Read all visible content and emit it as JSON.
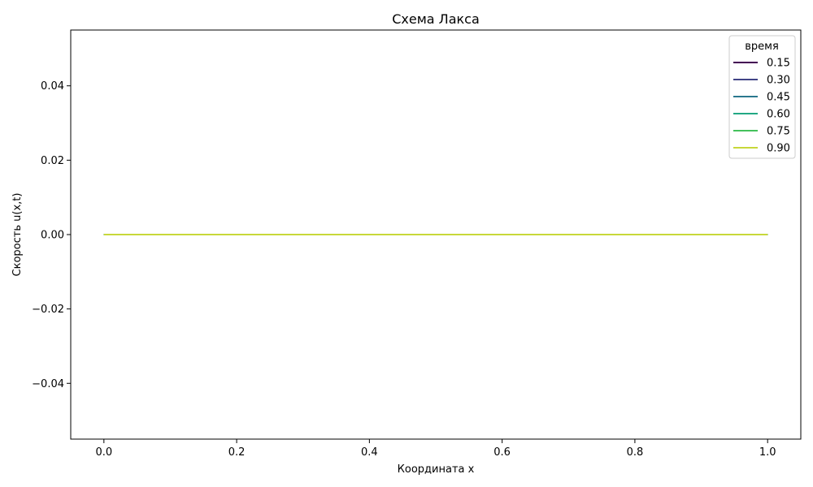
{
  "chart_data": {
    "type": "line",
    "title": "Схема Лакса",
    "xlabel": "Координата x",
    "ylabel": "Скорость u(x,t)",
    "xlim": [
      -0.05,
      1.05
    ],
    "ylim": [
      -0.055,
      0.055
    ],
    "xticks": [
      0.0,
      0.2,
      0.4,
      0.6,
      0.8,
      1.0
    ],
    "xtick_labels": [
      "0.0",
      "0.2",
      "0.4",
      "0.6",
      "0.8",
      "1.0"
    ],
    "yticks": [
      0.04,
      0.02,
      0.0,
      -0.02,
      -0.04
    ],
    "ytick_labels": [
      "0.04",
      "0.02",
      "0.00",
      "−0.02",
      "−0.04"
    ],
    "grid": false,
    "legend": {
      "title": "время",
      "placement": "top-right"
    },
    "series": [
      {
        "name": "0.15",
        "color": "#440154",
        "x": [
          0.0,
          1.0
        ],
        "y": [
          0.0,
          0.0
        ]
      },
      {
        "name": "0.30",
        "color": "#414487",
        "x": [
          0.0,
          1.0
        ],
        "y": [
          0.0,
          0.0
        ]
      },
      {
        "name": "0.45",
        "color": "#2a788e",
        "x": [
          0.0,
          1.0
        ],
        "y": [
          0.0,
          0.0
        ]
      },
      {
        "name": "0.60",
        "color": "#22a884",
        "x": [
          0.0,
          1.0
        ],
        "y": [
          0.0,
          0.0
        ]
      },
      {
        "name": "0.75",
        "color": "#44c15c",
        "x": [
          0.0,
          1.0
        ],
        "y": [
          0.0,
          0.0
        ]
      },
      {
        "name": "0.90",
        "color": "#c8d83a",
        "x": [
          0.0,
          1.0
        ],
        "y": [
          0.0,
          0.0
        ]
      }
    ]
  }
}
